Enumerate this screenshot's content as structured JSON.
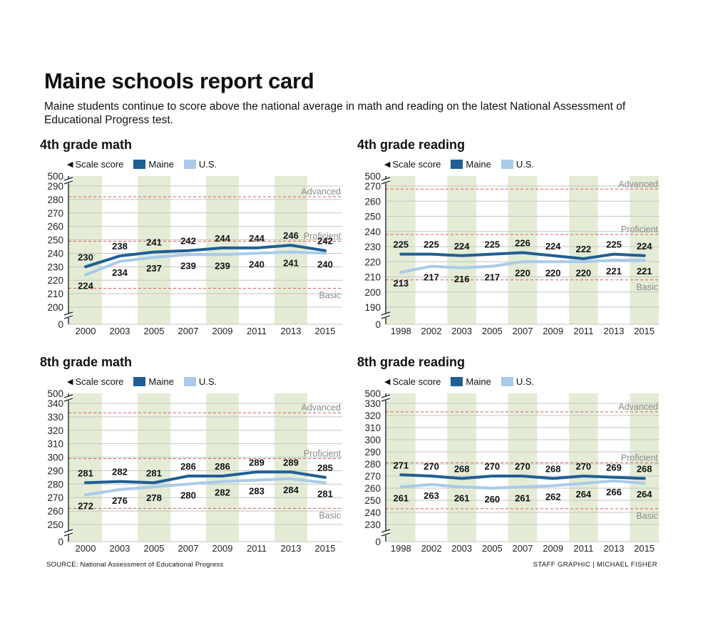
{
  "headline": "Maine schools report card",
  "dek": "Maine students continue to score above the national average in math and reading on the latest National Assessment of Educational Progress test.",
  "legend": {
    "scale_label": "Scale score",
    "maine_label": "Maine",
    "us_label": "U.S."
  },
  "colors": {
    "maine": "#1f5f94",
    "us": "#a9cbea",
    "band": "#e4ecd6",
    "grid": "#c4c4c4",
    "level": "#d75a5a",
    "level_label": "#8a8a8a"
  },
  "source": "SOURCE: National Assessment of Educational Progress",
  "credit": "STAFF GRAPHIC | MICHAEL FISHER",
  "chart_data": [
    {
      "type": "line",
      "title": "4th grade math",
      "categories": [
        "2000",
        "2003",
        "2005",
        "2007",
        "2009",
        "2011",
        "2013",
        "2015"
      ],
      "series": [
        {
          "name": "Maine",
          "values": [
            230,
            238,
            241,
            242,
            244,
            244,
            246,
            242
          ]
        },
        {
          "name": "U.S.",
          "values": [
            224,
            234,
            237,
            239,
            239,
            240,
            241,
            240
          ]
        }
      ],
      "ylim": [
        200,
        290
      ],
      "yticks": [
        "200",
        "210",
        "220",
        "230",
        "240",
        "250",
        "260",
        "270",
        "280",
        "290"
      ],
      "axis_top": "500",
      "axis_bottom": "0",
      "levels": [
        {
          "name": "Basic",
          "value": 214
        },
        {
          "name": "Proficient",
          "value": 249
        },
        {
          "name": "Advanced",
          "value": 282
        }
      ]
    },
    {
      "type": "line",
      "title": "4th grade reading",
      "categories": [
        "1998",
        "2002",
        "2003",
        "2005",
        "2007",
        "2009",
        "2011",
        "2013",
        "2015"
      ],
      "series": [
        {
          "name": "Maine",
          "values": [
            225,
            225,
            224,
            225,
            226,
            224,
            222,
            225,
            224
          ]
        },
        {
          "name": "U.S.",
          "values": [
            213,
            217,
            216,
            217,
            220,
            220,
            220,
            221,
            221
          ]
        }
      ],
      "ylim": [
        190,
        270
      ],
      "yticks": [
        "190",
        "200",
        "210",
        "220",
        "230",
        "240",
        "250",
        "260",
        "270"
      ],
      "axis_top": "500",
      "axis_bottom": "0",
      "levels": [
        {
          "name": "Basic",
          "value": 208
        },
        {
          "name": "Proficient",
          "value": 238
        },
        {
          "name": "Advanced",
          "value": 268
        }
      ]
    },
    {
      "type": "line",
      "title": "8th grade math",
      "categories": [
        "2000",
        "2003",
        "2005",
        "2007",
        "2009",
        "2011",
        "2013",
        "2015"
      ],
      "series": [
        {
          "name": "Maine",
          "values": [
            281,
            282,
            281,
            286,
            286,
            289,
            289,
            285
          ]
        },
        {
          "name": "U.S.",
          "values": [
            272,
            276,
            278,
            280,
            282,
            283,
            284,
            281
          ]
        }
      ],
      "ylim": [
        250,
        340
      ],
      "yticks": [
        "250",
        "260",
        "270",
        "280",
        "290",
        "300",
        "310",
        "320",
        "330",
        "340"
      ],
      "axis_top": "500",
      "axis_bottom": "0",
      "levels": [
        {
          "name": "Basic",
          "value": 262
        },
        {
          "name": "Proficient",
          "value": 299
        },
        {
          "name": "Advanced",
          "value": 333
        }
      ]
    },
    {
      "type": "line",
      "title": "8th grade reading",
      "categories": [
        "1998",
        "2002",
        "2003",
        "2005",
        "2007",
        "2009",
        "2011",
        "2013",
        "2015"
      ],
      "series": [
        {
          "name": "Maine",
          "values": [
            271,
            270,
            268,
            270,
            270,
            268,
            270,
            269,
            268
          ]
        },
        {
          "name": "U.S.",
          "values": [
            261,
            263,
            261,
            260,
            261,
            262,
            264,
            266,
            264
          ]
        }
      ],
      "ylim": [
        230,
        330
      ],
      "yticks": [
        "230",
        "240",
        "250",
        "260",
        "270",
        "280",
        "290",
        "300",
        "310",
        "320",
        "330"
      ],
      "axis_top": "500",
      "axis_bottom": "0",
      "levels": [
        {
          "name": "Basic",
          "value": 243
        },
        {
          "name": "Proficient",
          "value": 281
        },
        {
          "name": "Advanced",
          "value": 323
        }
      ]
    }
  ]
}
